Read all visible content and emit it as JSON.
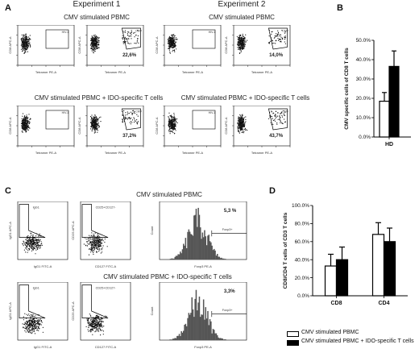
{
  "panels": {
    "A": "A",
    "B": "B",
    "C": "C",
    "D": "D"
  },
  "panel_a": {
    "experiment1": "Experiment 1",
    "experiment2": "Experiment 2",
    "row1_title": "CMV stimulated PBMC",
    "row2_title": "CMV stimulated PBMC + IDO-specific T cells",
    "xaxis": "Tetramer PE-A",
    "yaxis": "CD8 APC-A",
    "gate_hiv": "HIV-1",
    "gate_cmv": "CMV",
    "values": {
      "e1_r1": "22,6%",
      "e2_r1": "14,0%",
      "e1_r2": "37,2%",
      "e2_r2": "43,7%"
    }
  },
  "panel_c": {
    "row1_title": "CMV stimulated PBMC",
    "row2_title": "CMV stimulated PBMC + IDO-specific T cells",
    "igg1_label": "IgG1",
    "cd25_label": "CD25+CD127-",
    "foxp3_label": "Foxp3+",
    "xaxis_igg": "IgG1 FITC-A",
    "yaxis_igg": "IgG1 APC-A",
    "xaxis_cd127": "CD127 FITC-A",
    "yaxis_cd25": "CD25 APC-A",
    "xaxis_foxp3": "Foxp3 PE-A",
    "yaxis_count": "Count",
    "val_r1": "5,3 %",
    "val_r2": "3,3%"
  },
  "chart_data": [
    {
      "type": "bar",
      "panel": "B",
      "ylabel": "CMV specific cells of CD8 T cells",
      "categories": [
        "HD"
      ],
      "ylim": [
        0,
        50
      ],
      "yticks": [
        "0.0%",
        "10.0%",
        "20.0%",
        "30.0%",
        "40.0%",
        "50.0%"
      ],
      "series": [
        {
          "values": [
            18.5
          ],
          "errors": [
            4.5
          ],
          "color": "#ffffff"
        },
        {
          "values": [
            36.5
          ],
          "errors": [
            8.0
          ],
          "color": "#000000"
        }
      ]
    },
    {
      "type": "bar",
      "panel": "D",
      "ylabel": "CD8/CD4 T cells of CD3 T cells",
      "categories": [
        "CD8",
        "CD4"
      ],
      "ylim": [
        0,
        100
      ],
      "yticks": [
        "0.0%",
        "20.0%",
        "40.0%",
        "60.0%",
        "80.0%",
        "100.0%"
      ],
      "series": [
        {
          "name": "CMV stimulated PBMC",
          "values": [
            33,
            68
          ],
          "errors": [
            13,
            13
          ],
          "color": "#ffffff"
        },
        {
          "name": "CMV stimulated PBMC + IDO-specific T cells",
          "values": [
            40,
            60
          ],
          "errors": [
            14,
            15
          ],
          "color": "#000000"
        }
      ]
    }
  ]
}
